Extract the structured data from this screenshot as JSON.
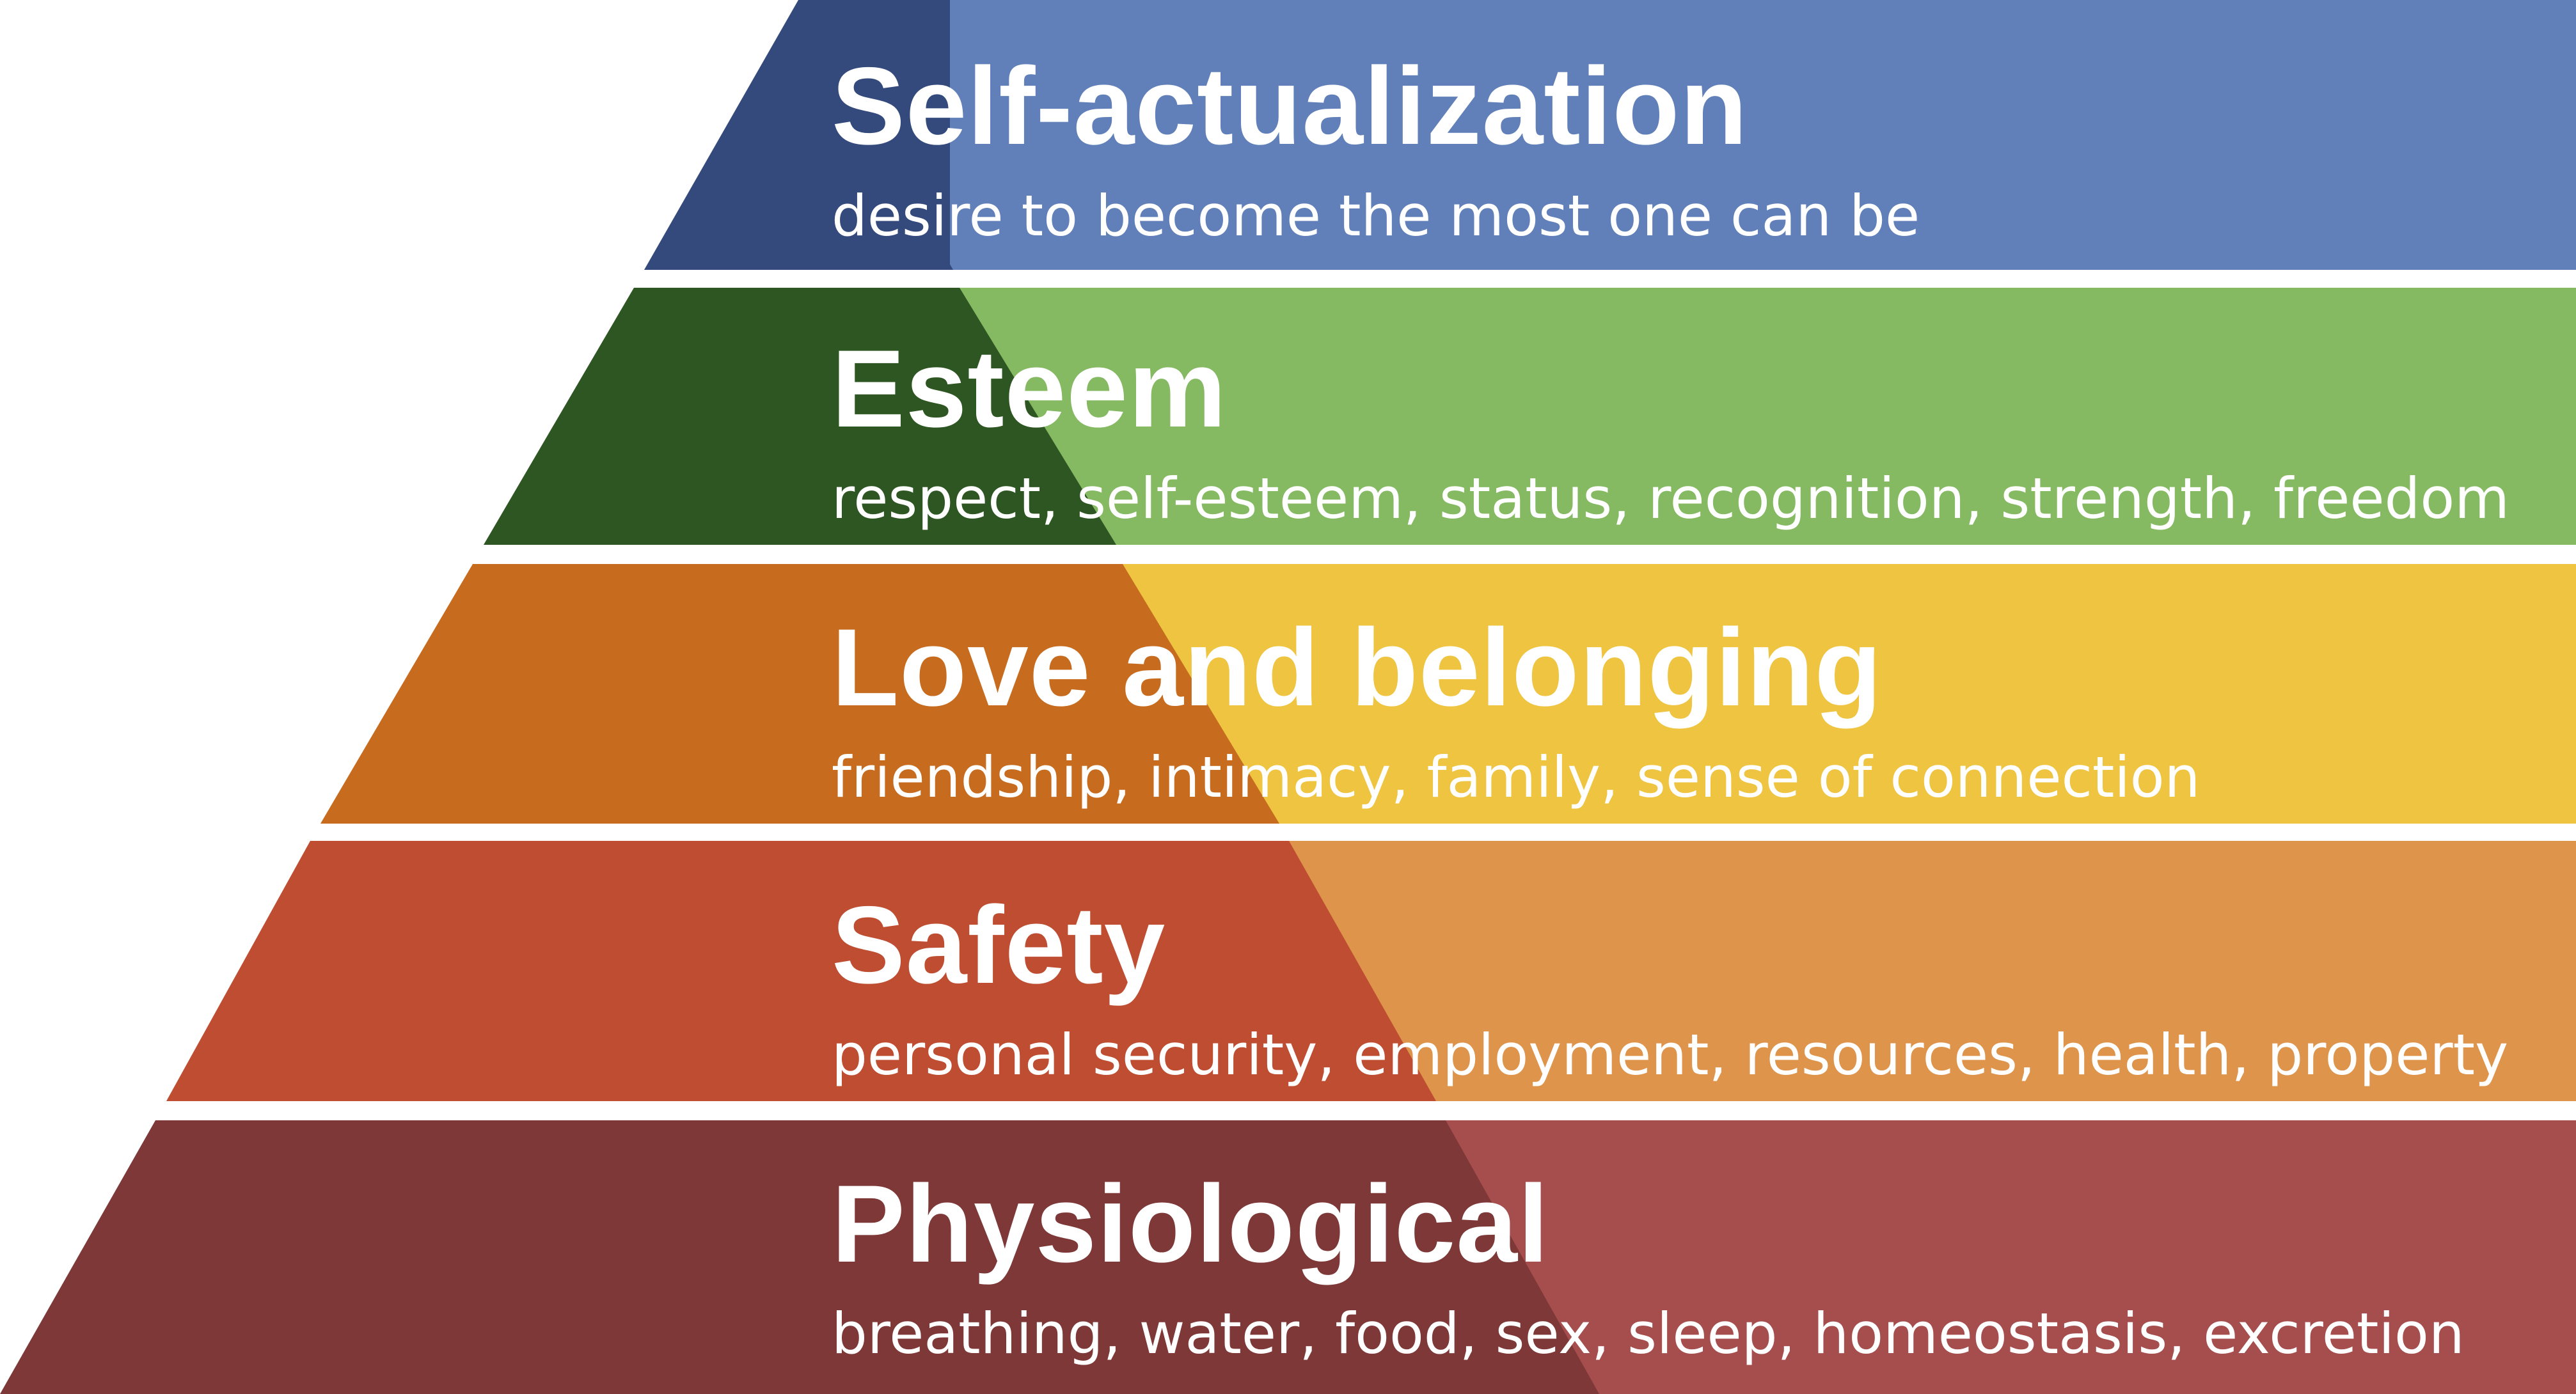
{
  "levels": [
    {
      "title": "Self-actualization",
      "description": "desire to become the most one can be",
      "band_color": "#6180B9",
      "pyramid_color": "#344A7C"
    },
    {
      "title": "Esteem",
      "description": "respect, self-esteem, status, recognition, strength, freedom",
      "band_color": "#85B962",
      "pyramid_color": "#2E5622"
    },
    {
      "title": "Love and belonging",
      "description": "friendship, intimacy, family, sense of connection",
      "band_color": "#EEC440",
      "pyramid_color": "#C76C1F"
    },
    {
      "title": "Safety",
      "description": "personal security, employment, resources, health, property",
      "band_color": "#DE944B",
      "pyramid_color": "#BE4D31"
    },
    {
      "title": "Physiological",
      "description": "breathing, water, food, sex, sleep, homeostasis, excretion",
      "band_color": "#A64E4E",
      "pyramid_color": "#7E3838"
    }
  ]
}
